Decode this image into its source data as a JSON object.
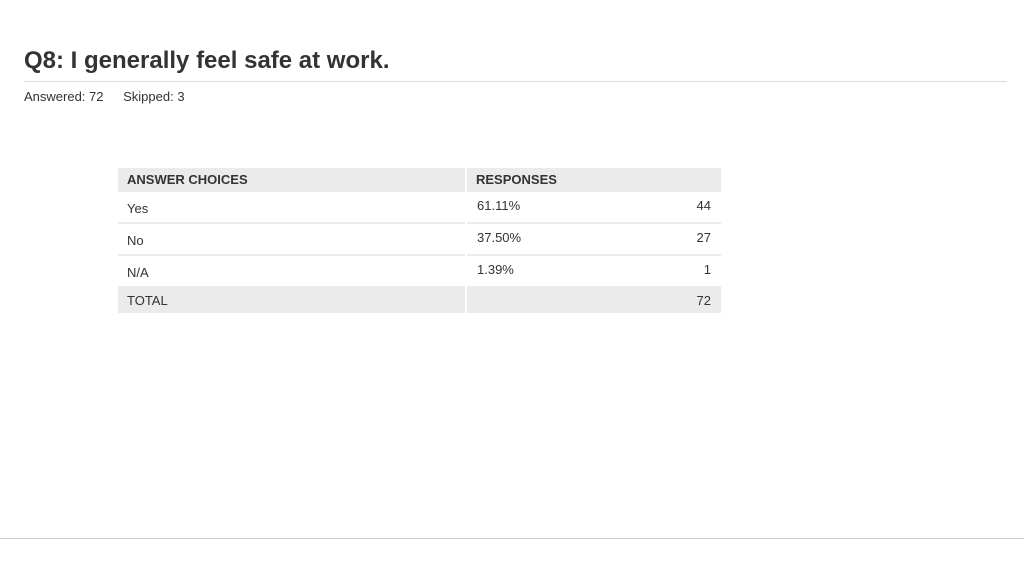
{
  "question": {
    "title": "Q8: I generally feel safe at work.",
    "answered": "Answered: 72",
    "skipped": "Skipped: 3"
  },
  "table": {
    "headers": {
      "choices": "ANSWER CHOICES",
      "responses": "RESPONSES"
    },
    "rows": [
      {
        "choice": "Yes",
        "percent": "61.11%",
        "count": "44"
      },
      {
        "choice": "No",
        "percent": "37.50%",
        "count": "27"
      },
      {
        "choice": "N/A",
        "percent": "1.39%",
        "count": "1"
      }
    ],
    "total": {
      "label": "TOTAL",
      "count": "72"
    }
  }
}
